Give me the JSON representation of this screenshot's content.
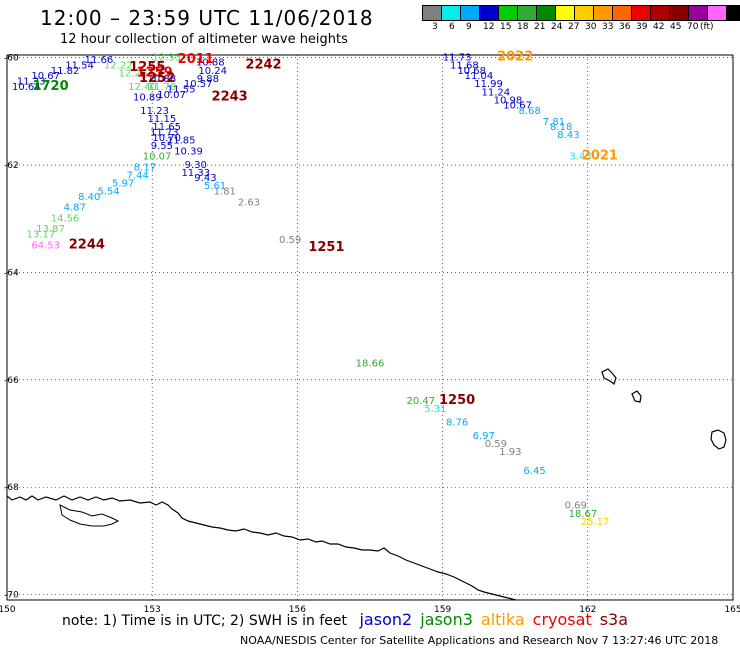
{
  "header": {
    "title": "12:00 – 23:59 UTC 11/06/2018",
    "subtitle": "12 hour collection of altimeter wave heights"
  },
  "color_scale": {
    "labels": [
      "3",
      "6",
      "9",
      "12",
      "15",
      "18",
      "21",
      "24",
      "27",
      "30",
      "33",
      "36",
      "39",
      "42",
      "45",
      "70",
      "(ft)"
    ],
    "colors": [
      "#808080",
      "#00eeee",
      "#00aaff",
      "#0000cc",
      "#00cc00",
      "#33aa33",
      "#008800",
      "#ffff00",
      "#ffcc00",
      "#ff9900",
      "#ff6600",
      "#ee0000",
      "#aa0000",
      "#880000",
      "#990099",
      "#ff66ff",
      "#000000"
    ]
  },
  "axes": {
    "lon_ticks": [
      "150",
      "153",
      "156",
      "159",
      "162",
      "165"
    ],
    "lat_ticks": [
      "-60",
      "-62",
      "-64",
      "-66",
      "-68",
      "-70"
    ]
  },
  "wave_labels": [
    {
      "lon": 151.9,
      "lat": -60.1,
      "text": "11.66",
      "color": "#0000cc"
    },
    {
      "lon": 151.5,
      "lat": -60.2,
      "text": "11.54",
      "color": "#0000cc"
    },
    {
      "lon": 151.2,
      "lat": -60.3,
      "text": "11.82",
      "color": "#0000cc"
    },
    {
      "lon": 150.8,
      "lat": -60.4,
      "text": "10.67",
      "color": "#0000cc"
    },
    {
      "lon": 150.5,
      "lat": -60.5,
      "text": "11.33",
      "color": "#0000cc"
    },
    {
      "lon": 150.4,
      "lat": -60.6,
      "text": "10.64",
      "color": "#0000cc"
    },
    {
      "lon": 153.3,
      "lat": -60.05,
      "text": "12.33",
      "color": "#55dd55"
    },
    {
      "lon": 152.3,
      "lat": -60.2,
      "text": "12.22",
      "color": "#55dd55"
    },
    {
      "lon": 152.6,
      "lat": -60.35,
      "text": "12.26",
      "color": "#55dd55"
    },
    {
      "lon": 152.8,
      "lat": -60.6,
      "text": "12.40",
      "color": "#55dd55"
    },
    {
      "lon": 153.2,
      "lat": -60.6,
      "text": "11.78",
      "color": "#55dd55"
    },
    {
      "lon": 152.9,
      "lat": -60.8,
      "text": "10.89",
      "color": "#0000cc"
    },
    {
      "lon": 153.05,
      "lat": -61.05,
      "text": "11.23",
      "color": "#0000cc"
    },
    {
      "lon": 153.2,
      "lat": -61.2,
      "text": "11.15",
      "color": "#0000cc"
    },
    {
      "lon": 153.3,
      "lat": -61.35,
      "text": "11.65",
      "color": "#0000cc"
    },
    {
      "lon": 153.25,
      "lat": -61.45,
      "text": "11.73",
      "color": "#0000cc"
    },
    {
      "lon": 153.3,
      "lat": -61.55,
      "text": "10.70",
      "color": "#0000cc"
    },
    {
      "lon": 153.6,
      "lat": -61.6,
      "text": "11.85",
      "color": "#0000cc"
    },
    {
      "lon": 153.2,
      "lat": -61.7,
      "text": "9.55",
      "color": "#0000cc"
    },
    {
      "lon": 153.75,
      "lat": -61.8,
      "text": "10.39",
      "color": "#0000cc"
    },
    {
      "lon": 153.1,
      "lat": -61.9,
      "text": "10.07",
      "color": "#33aa33"
    },
    {
      "lon": 153.9,
      "lat": -62.05,
      "text": "9.30",
      "color": "#0000cc"
    },
    {
      "lon": 152.85,
      "lat": -62.1,
      "text": "8.17",
      "color": "#00aaff"
    },
    {
      "lon": 153.9,
      "lat": -62.2,
      "text": "11.33",
      "color": "#0000cc"
    },
    {
      "lon": 152.7,
      "lat": -62.25,
      "text": "7.44",
      "color": "#00aaff"
    },
    {
      "lon": 154.1,
      "lat": -62.3,
      "text": "9.43",
      "color": "#0000cc"
    },
    {
      "lon": 152.4,
      "lat": -62.4,
      "text": "5.97",
      "color": "#00aaff"
    },
    {
      "lon": 154.3,
      "lat": -62.45,
      "text": "5.61",
      "color": "#00aaff"
    },
    {
      "lon": 152.1,
      "lat": -62.55,
      "text": "5.54",
      "color": "#00aaff"
    },
    {
      "lon": 154.5,
      "lat": -62.55,
      "text": "1.81",
      "color": "#808080"
    },
    {
      "lon": 151.7,
      "lat": -62.65,
      "text": "8.40",
      "color": "#00aaff"
    },
    {
      "lon": 155.0,
      "lat": -62.75,
      "text": "2.63",
      "color": "#808080"
    },
    {
      "lon": 151.4,
      "lat": -62.85,
      "text": "4.87",
      "color": "#00aaff"
    },
    {
      "lon": 151.2,
      "lat": -63.05,
      "text": "14.56",
      "color": "#55dd55"
    },
    {
      "lon": 150.9,
      "lat": -63.25,
      "text": "13.87",
      "color": "#55dd55"
    },
    {
      "lon": 150.7,
      "lat": -63.35,
      "text": "13.17",
      "color": "#55dd55"
    },
    {
      "lon": 150.8,
      "lat": -63.55,
      "text": "64.53",
      "color": "#ff66ff"
    },
    {
      "lon": 153.2,
      "lat": -60.45,
      "text": "10.88",
      "color": "#0000cc"
    },
    {
      "lon": 154.2,
      "lat": -60.15,
      "text": "10.88",
      "color": "#0000cc"
    },
    {
      "lon": 154.25,
      "lat": -60.3,
      "text": "10.24",
      "color": "#0000cc"
    },
    {
      "lon": 154.15,
      "lat": -60.45,
      "text": "9.88",
      "color": "#0000cc"
    },
    {
      "lon": 153.95,
      "lat": -60.55,
      "text": "10.57",
      "color": "#0000cc"
    },
    {
      "lon": 153.6,
      "lat": -60.65,
      "text": "11.55",
      "color": "#0000cc"
    },
    {
      "lon": 153.4,
      "lat": -60.75,
      "text": "10.07",
      "color": "#0000cc"
    },
    {
      "lon": 159.3,
      "lat": -60.05,
      "text": "11.73",
      "color": "#0000cc"
    },
    {
      "lon": 159.45,
      "lat": -60.2,
      "text": "11.68",
      "color": "#0000cc"
    },
    {
      "lon": 159.6,
      "lat": -60.3,
      "text": "10.68",
      "color": "#0000cc"
    },
    {
      "lon": 159.75,
      "lat": -60.4,
      "text": "11.04",
      "color": "#0000cc"
    },
    {
      "lon": 159.95,
      "lat": -60.55,
      "text": "11.99",
      "color": "#0000cc"
    },
    {
      "lon": 160.1,
      "lat": -60.7,
      "text": "11.24",
      "color": "#0000cc"
    },
    {
      "lon": 160.35,
      "lat": -60.85,
      "text": "10.98",
      "color": "#0000cc"
    },
    {
      "lon": 160.55,
      "lat": -60.95,
      "text": "10.67",
      "color": "#0000cc"
    },
    {
      "lon": 160.8,
      "lat": -61.05,
      "text": "8.68",
      "color": "#00aaff"
    },
    {
      "lon": 161.3,
      "lat": -61.25,
      "text": "7.81",
      "color": "#00aaff"
    },
    {
      "lon": 161.45,
      "lat": -61.35,
      "text": "8.18",
      "color": "#00aaff"
    },
    {
      "lon": 161.6,
      "lat": -61.5,
      "text": "8.43",
      "color": "#00aaff"
    },
    {
      "lon": 161.85,
      "lat": -61.9,
      "text": "3.43",
      "color": "#00eeee"
    },
    {
      "lon": 155.85,
      "lat": -63.45,
      "text": "0.59",
      "color": "#808080"
    },
    {
      "lon": 157.5,
      "lat": -65.75,
      "text": "18.66",
      "color": "#33aa33"
    },
    {
      "lon": 158.55,
      "lat": -66.45,
      "text": "20.47",
      "color": "#33aa33"
    },
    {
      "lon": 158.85,
      "lat": -66.6,
      "text": "5.31",
      "color": "#00eeee"
    },
    {
      "lon": 159.3,
      "lat": -66.85,
      "text": "8.76",
      "color": "#00aaff"
    },
    {
      "lon": 159.85,
      "lat": -67.1,
      "text": "6.97",
      "color": "#00aaff"
    },
    {
      "lon": 160.1,
      "lat": -67.25,
      "text": "0.59",
      "color": "#808080"
    },
    {
      "lon": 160.4,
      "lat": -67.4,
      "text": "1.93",
      "color": "#808080"
    },
    {
      "lon": 160.9,
      "lat": -67.75,
      "text": "6.45",
      "color": "#00aaff"
    },
    {
      "lon": 161.75,
      "lat": -68.4,
      "text": "0.69",
      "color": "#808080"
    },
    {
      "lon": 161.9,
      "lat": -68.55,
      "text": "18.67",
      "color": "#33aa33"
    },
    {
      "lon": 162.15,
      "lat": -68.7,
      "text": "25.17",
      "color": "#ffcc00"
    }
  ],
  "time_labels": [
    {
      "lon": 150.9,
      "lat": -60.6,
      "text": "1720",
      "color": "#008800"
    },
    {
      "lon": 153.9,
      "lat": -60.1,
      "text": "2011",
      "color": "#ee0000"
    },
    {
      "lon": 152.9,
      "lat": -60.25,
      "text": "1255",
      "color": "#880000"
    },
    {
      "lon": 153.05,
      "lat": -60.35,
      "text": "1259",
      "color": "#ee0000"
    },
    {
      "lon": 153.1,
      "lat": -60.45,
      "text": "1252",
      "color": "#880000"
    },
    {
      "lon": 155.3,
      "lat": -60.2,
      "text": "2242",
      "color": "#880000"
    },
    {
      "lon": 154.6,
      "lat": -60.8,
      "text": "2243",
      "color": "#880000"
    },
    {
      "lon": 160.5,
      "lat": -60.05,
      "text": "2022",
      "color": "#ff9900"
    },
    {
      "lon": 162.25,
      "lat": -61.9,
      "text": "2021",
      "color": "#ff9900"
    },
    {
      "lon": 151.65,
      "lat": -63.55,
      "text": "2244",
      "color": "#880000"
    },
    {
      "lon": 156.6,
      "lat": -63.6,
      "text": "1251",
      "color": "#880000"
    },
    {
      "lon": 159.3,
      "lat": -66.45,
      "text": "1250",
      "color": "#880000"
    }
  ],
  "footer": {
    "note": "note:  1) Time is in UTC;  2) SWH is in feet",
    "satellites": [
      {
        "name": "jason2",
        "color": "#0000cc"
      },
      {
        "name": "jason3",
        "color": "#008800"
      },
      {
        "name": "altika",
        "color": "#ff9900"
      },
      {
        "name": "cryosat",
        "color": "#ee0000"
      },
      {
        "name": "s3a",
        "color": "#880000"
      }
    ],
    "credit": "NOAA/NESDIS Center for Satellite Applications and Research    Nov  7 13:27:46 UTC 2018"
  }
}
